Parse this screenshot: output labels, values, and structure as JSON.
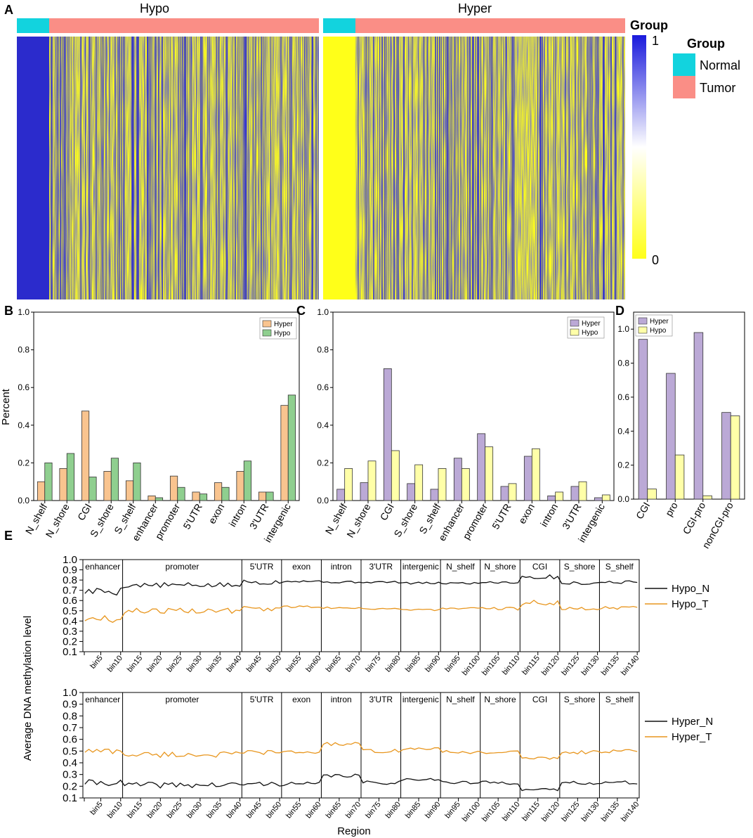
{
  "panel_labels": [
    "A",
    "B",
    "C",
    "D",
    "E"
  ],
  "colors": {
    "normal": "#12D3DE",
    "tumor": "#FA8E86",
    "blue": "#1A1ADC",
    "yellow": "#FFFF19",
    "orange": "#F9C48F",
    "green": "#8FCF8F",
    "purple": "#BBA9D6",
    "lightyellow": "#FFFFA8",
    "line_black": "#111111",
    "line_orange": "#E8961E"
  },
  "icons": [
    "heatmap-noise-texture"
  ],
  "chart_data": [
    {
      "id": "A",
      "type": "heatmap",
      "blocks": [
        {
          "title": "Hypo",
          "normal_value": 1,
          "tumor_value": "mixed"
        },
        {
          "title": "Hyper",
          "normal_value": 0,
          "tumor_value": "mixed"
        }
      ],
      "colorbar": {
        "title": "Group",
        "max_label": "1",
        "min_label": "0"
      },
      "legend": {
        "title": "Group",
        "items": [
          "Normal",
          "Tumor"
        ]
      }
    },
    {
      "id": "B",
      "type": "bar",
      "categories": [
        "N_shelf",
        "N_shore",
        "CGI",
        "S_shore",
        "S_shelf",
        "enhancer",
        "promoter",
        "5'UTR",
        "exon",
        "intron",
        "3'UTR",
        "intergenic"
      ],
      "series": [
        {
          "name": "Hyper",
          "values": [
            0.1,
            0.17,
            0.475,
            0.155,
            0.105,
            0.025,
            0.13,
            0.045,
            0.095,
            0.155,
            0.045,
            0.505
          ]
        },
        {
          "name": "Hypo",
          "values": [
            0.2,
            0.25,
            0.125,
            0.225,
            0.2,
            0.015,
            0.07,
            0.035,
            0.07,
            0.21,
            0.045,
            0.56
          ]
        }
      ],
      "ylabel": "Percent",
      "ylim": [
        0,
        1.0
      ],
      "yticks": [
        "0.0",
        "0.2",
        "0.4",
        "0.6",
        "0.8",
        "1.0"
      ],
      "legend": "top-right"
    },
    {
      "id": "C",
      "type": "bar",
      "categories": [
        "N_shelf",
        "N_shore",
        "CGI",
        "S_shore",
        "S_shelf",
        "enhancer",
        "promoter",
        "5'UTR",
        "exon",
        "intron",
        "3'UTR",
        "intergenic"
      ],
      "series": [
        {
          "name": "Hyper",
          "values": [
            0.06,
            0.095,
            0.7,
            0.09,
            0.06,
            0.225,
            0.355,
            0.075,
            0.235,
            0.025,
            0.075,
            0.015
          ]
        },
        {
          "name": "Hypo",
          "values": [
            0.17,
            0.21,
            0.265,
            0.19,
            0.17,
            0.17,
            0.285,
            0.09,
            0.275,
            0.045,
            0.1,
            0.03
          ]
        }
      ],
      "ylim": [
        0,
        1.0
      ],
      "yticks": [
        "0.0",
        "0.2",
        "0.4",
        "0.6",
        "0.8",
        "1.0"
      ],
      "legend": "top-right"
    },
    {
      "id": "D",
      "type": "bar",
      "categories": [
        "CGI",
        "pro",
        "CGI-pro",
        "nonCGI-pro"
      ],
      "series": [
        {
          "name": "Hyper",
          "values": [
            0.94,
            0.74,
            0.98,
            0.51
          ]
        },
        {
          "name": "Hypo",
          "values": [
            0.06,
            0.26,
            0.02,
            0.49
          ]
        }
      ],
      "ylim": [
        0,
        1.1
      ],
      "yticks": [
        "0.0",
        "0.2",
        "0.4",
        "0.6",
        "0.8",
        "1.0"
      ],
      "legend": "top-left"
    },
    {
      "id": "E",
      "type": "line",
      "ylabel": "Average DNA methylation level",
      "xlabel": "Region",
      "ylim": [
        0.1,
        1.0
      ],
      "yticks": [
        "0.1",
        "0.2",
        "0.3",
        "0.4",
        "0.5",
        "0.6",
        "0.7",
        "0.8",
        "0.9",
        "1.0"
      ],
      "bins": 140,
      "xticks": [
        "bin5",
        "bin10",
        "bin15",
        "bin20",
        "bin25",
        "bin30",
        "bin35",
        "bin40",
        "bin45",
        "bin50",
        "bin55",
        "bin60",
        "bin65",
        "bin70",
        "bin75",
        "bin80",
        "bin85",
        "bin90",
        "bin95",
        "bin100",
        "bin105",
        "bin110",
        "bin115",
        "bin120",
        "bin125",
        "bin130",
        "bin135",
        "bin140"
      ],
      "regions": [
        "enhancer",
        "promoter",
        "5'UTR",
        "exon",
        "intron",
        "3'UTR",
        "intergenic",
        "N_shelf",
        "N_shore",
        "CGI",
        "S_shore",
        "S_shelf"
      ],
      "region_bounds": [
        0,
        10,
        40,
        50,
        60,
        70,
        80,
        90,
        100,
        110,
        120,
        130,
        140
      ],
      "panels": [
        {
          "series": [
            {
              "name": "Hypo_N",
              "region_means": [
                0.69,
                0.75,
                0.78,
                0.79,
                0.78,
                0.78,
                0.77,
                0.77,
                0.78,
                0.83,
                0.77,
                0.78
              ]
            },
            {
              "name": "Hypo_T",
              "region_means": [
                0.42,
                0.5,
                0.52,
                0.54,
                0.53,
                0.52,
                0.51,
                0.52,
                0.52,
                0.58,
                0.52,
                0.53
              ]
            }
          ]
        },
        {
          "series": [
            {
              "name": "Hyper_N",
              "region_means": [
                0.23,
                0.21,
                0.22,
                0.22,
                0.29,
                0.23,
                0.26,
                0.23,
                0.23,
                0.17,
                0.23,
                0.23
              ]
            },
            {
              "name": "Hyper_T",
              "region_means": [
                0.5,
                0.47,
                0.49,
                0.49,
                0.56,
                0.5,
                0.52,
                0.49,
                0.49,
                0.44,
                0.49,
                0.5
              ]
            }
          ]
        }
      ]
    }
  ]
}
